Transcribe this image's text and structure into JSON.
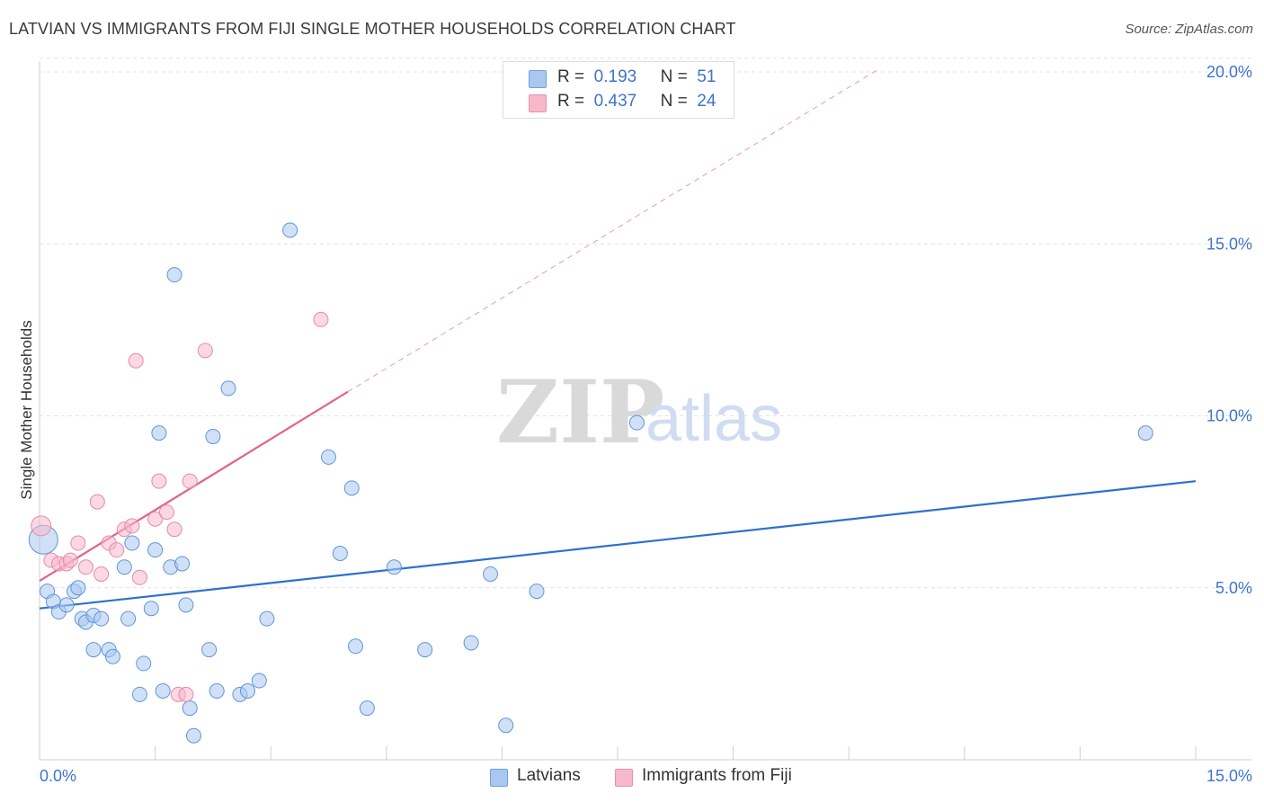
{
  "title": "LATVIAN VS IMMIGRANTS FROM FIJI SINGLE MOTHER HOUSEHOLDS CORRELATION CHART",
  "source": "Source: ZipAtlas.com",
  "watermark": {
    "zip": "ZIP",
    "atlas": "atlas"
  },
  "legend_top": {
    "rows": [
      {
        "r_label": "R =",
        "r_value": "0.193",
        "n_label": "N =",
        "n_value": "51",
        "color": "#a9c8f0"
      },
      {
        "r_label": "R =",
        "r_value": "0.437",
        "n_label": "N =",
        "n_value": "24",
        "color": "#f7b8cc"
      }
    ]
  },
  "legend_bottom": [
    {
      "label": "Latvians",
      "color": "#a9c8f0"
    },
    {
      "label": "Immigrants from Fiji",
      "color": "#f7b8cc"
    }
  ],
  "chart_data": {
    "type": "scatter",
    "title": "LATVIAN VS IMMIGRANTS FROM FIJI SINGLE MOTHER HOUSEHOLDS CORRELATION CHART",
    "xlabel": "",
    "ylabel": "Single Mother Households",
    "xlim": [
      0,
      15
    ],
    "ylim": [
      0,
      20
    ],
    "x_tick_labels": [
      "0.0%",
      "15.0%"
    ],
    "y_tick_labels": [
      "5.0%",
      "10.0%",
      "15.0%",
      "20.0%"
    ],
    "y_ticks": [
      5,
      10,
      15,
      20
    ],
    "grid": true,
    "legend": "top-center",
    "series": [
      {
        "name": "Latvians",
        "color": "#a9c8f0",
        "stroke": "#5f95dc",
        "trend": {
          "x": [
            0,
            15
          ],
          "y": [
            4.4,
            8.1
          ],
          "color": "#2d6fd1"
        },
        "points": [
          [
            0.05,
            6.4
          ],
          [
            0.1,
            4.9
          ],
          [
            0.18,
            4.6
          ],
          [
            0.25,
            4.3
          ],
          [
            0.35,
            4.5
          ],
          [
            0.45,
            4.9
          ],
          [
            0.5,
            5.0
          ],
          [
            0.55,
            4.1
          ],
          [
            0.6,
            4.0
          ],
          [
            0.7,
            4.2
          ],
          [
            0.8,
            4.1
          ],
          [
            0.7,
            3.2
          ],
          [
            0.9,
            3.2
          ],
          [
            0.95,
            3.0
          ],
          [
            1.1,
            5.6
          ],
          [
            1.15,
            4.1
          ],
          [
            1.2,
            6.3
          ],
          [
            1.3,
            1.9
          ],
          [
            1.35,
            2.8
          ],
          [
            1.45,
            4.4
          ],
          [
            1.5,
            6.1
          ],
          [
            1.55,
            9.5
          ],
          [
            1.6,
            2.0
          ],
          [
            1.7,
            5.6
          ],
          [
            1.75,
            14.1
          ],
          [
            1.85,
            5.7
          ],
          [
            1.9,
            4.5
          ],
          [
            1.95,
            1.5
          ],
          [
            2.0,
            0.7
          ],
          [
            2.2,
            3.2
          ],
          [
            2.25,
            9.4
          ],
          [
            2.3,
            2.0
          ],
          [
            2.45,
            10.8
          ],
          [
            2.6,
            1.9
          ],
          [
            2.7,
            2.0
          ],
          [
            2.85,
            2.3
          ],
          [
            2.95,
            4.1
          ],
          [
            3.25,
            15.4
          ],
          [
            3.75,
            8.8
          ],
          [
            3.9,
            6.0
          ],
          [
            4.05,
            7.9
          ],
          [
            4.1,
            3.3
          ],
          [
            4.25,
            1.5
          ],
          [
            4.6,
            5.6
          ],
          [
            5.0,
            3.2
          ],
          [
            5.6,
            3.4
          ],
          [
            5.85,
            5.4
          ],
          [
            6.05,
            1.0
          ],
          [
            6.45,
            4.9
          ],
          [
            7.75,
            9.8
          ],
          [
            14.35,
            9.5
          ]
        ]
      },
      {
        "name": "Immigrants from Fiji",
        "color": "#f7b8cc",
        "stroke": "#e68aa6",
        "trend": {
          "x": [
            0,
            4.0
          ],
          "y": [
            5.2,
            10.7
          ],
          "color": "#e2628a"
        },
        "trend_dashed": {
          "x": [
            4.0,
            10.9
          ],
          "y": [
            10.7,
            20.1
          ],
          "color": "#e89ab2"
        },
        "points": [
          [
            0.02,
            6.8
          ],
          [
            0.15,
            5.8
          ],
          [
            0.25,
            5.7
          ],
          [
            0.35,
            5.7
          ],
          [
            0.4,
            5.8
          ],
          [
            0.5,
            6.3
          ],
          [
            0.6,
            5.6
          ],
          [
            0.75,
            7.5
          ],
          [
            0.8,
            5.4
          ],
          [
            0.9,
            6.3
          ],
          [
            1.0,
            6.1
          ],
          [
            1.1,
            6.7
          ],
          [
            1.2,
            6.8
          ],
          [
            1.25,
            11.6
          ],
          [
            1.3,
            5.3
          ],
          [
            1.5,
            7.0
          ],
          [
            1.55,
            8.1
          ],
          [
            1.65,
            7.2
          ],
          [
            1.75,
            6.7
          ],
          [
            1.8,
            1.9
          ],
          [
            1.9,
            1.9
          ],
          [
            1.95,
            8.1
          ],
          [
            2.15,
            11.9
          ],
          [
            3.65,
            12.8
          ]
        ]
      }
    ]
  }
}
